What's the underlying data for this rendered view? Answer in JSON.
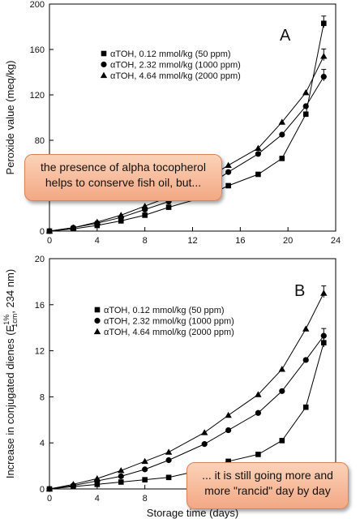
{
  "chart_data": [
    {
      "type": "line",
      "panel_label": "A",
      "title": "",
      "xlabel": "",
      "ylabel": "Peroxide value (meq/kg)",
      "xlim": [
        0,
        24
      ],
      "ylim": [
        0,
        200
      ],
      "xticks": [
        0,
        4,
        8,
        12,
        16,
        20,
        24
      ],
      "yticks": [
        0,
        40,
        80,
        120,
        160,
        200
      ],
      "legend_position": "upper-left",
      "series": [
        {
          "name": "αTOH, 0.12 mmol/kg (50 ppm)",
          "marker": "square",
          "x": [
            0,
            2,
            4,
            6,
            8,
            10,
            13,
            15,
            17.5,
            19.5,
            21.5,
            23
          ],
          "y": [
            0,
            2,
            5,
            9,
            14,
            21,
            30,
            40,
            50,
            64,
            103,
            183
          ]
        },
        {
          "name": "αTOH, 2.32 mmol/kg (1000 ppm)",
          "marker": "circle",
          "x": [
            0,
            2,
            4,
            6,
            8,
            10,
            13,
            15,
            17.5,
            19.5,
            21.5,
            23
          ],
          "y": [
            0,
            3,
            7,
            12,
            19,
            26,
            38,
            52,
            68,
            85,
            110,
            136
          ]
        },
        {
          "name": "αTOH, 4.64 mmol/kg (2000 ppm)",
          "marker": "triangle",
          "x": [
            0,
            2,
            4,
            6,
            8,
            10,
            13,
            15,
            17.5,
            19.5,
            21.5,
            23
          ],
          "y": [
            0,
            3,
            8,
            14,
            22,
            30,
            45,
            58,
            73,
            96,
            122,
            154
          ]
        }
      ]
    },
    {
      "type": "line",
      "panel_label": "B",
      "title": "",
      "xlabel": "Storage time (days)",
      "ylabel": "Increase in conjugated dienes (E",
      "ylabel_sup": "1%",
      "ylabel_sub": "1cm",
      "ylabel_tail": ", 234 nm)",
      "xlim": [
        0,
        24
      ],
      "ylim": [
        0,
        20
      ],
      "xticks": [
        0,
        4,
        8
      ],
      "yticks": [
        0,
        4,
        8,
        12,
        16,
        20
      ],
      "legend_position": "upper-left",
      "series": [
        {
          "name": "αTOH, 0.12 mmol/kg (50 ppm)",
          "marker": "square",
          "x": [
            0,
            2,
            4,
            6,
            8,
            10,
            13,
            15,
            17.5,
            19.5,
            21.5,
            23
          ],
          "y": [
            0,
            0.2,
            0.4,
            0.6,
            0.8,
            1.0,
            1.7,
            2.4,
            3.0,
            4.2,
            7.1,
            12.7
          ]
        },
        {
          "name": "αTOH, 2.32 mmol/kg (1000 ppm)",
          "marker": "circle",
          "x": [
            0,
            2,
            4,
            6,
            8,
            10,
            13,
            15,
            17.5,
            19.5,
            21.5,
            23
          ],
          "y": [
            0,
            0.3,
            0.7,
            1.1,
            1.7,
            2.5,
            3.9,
            5.1,
            6.6,
            8.5,
            11.2,
            13.3
          ]
        },
        {
          "name": "αTOH, 4.64 mmol/kg (2000 ppm)",
          "marker": "triangle",
          "x": [
            0,
            2,
            4,
            6,
            8,
            10,
            13,
            15,
            17.5,
            19.5,
            21.5,
            23
          ],
          "y": [
            0,
            0.4,
            0.9,
            1.6,
            2.4,
            3.2,
            4.9,
            6.4,
            8.2,
            10.4,
            13.9,
            17.0
          ]
        }
      ]
    }
  ],
  "annotations": {
    "callout_a": "the presence of alpha tocopherol helps to conserve fish oil, but...",
    "callout_b": "... it is still going more and more \"rancid\" day by day"
  }
}
